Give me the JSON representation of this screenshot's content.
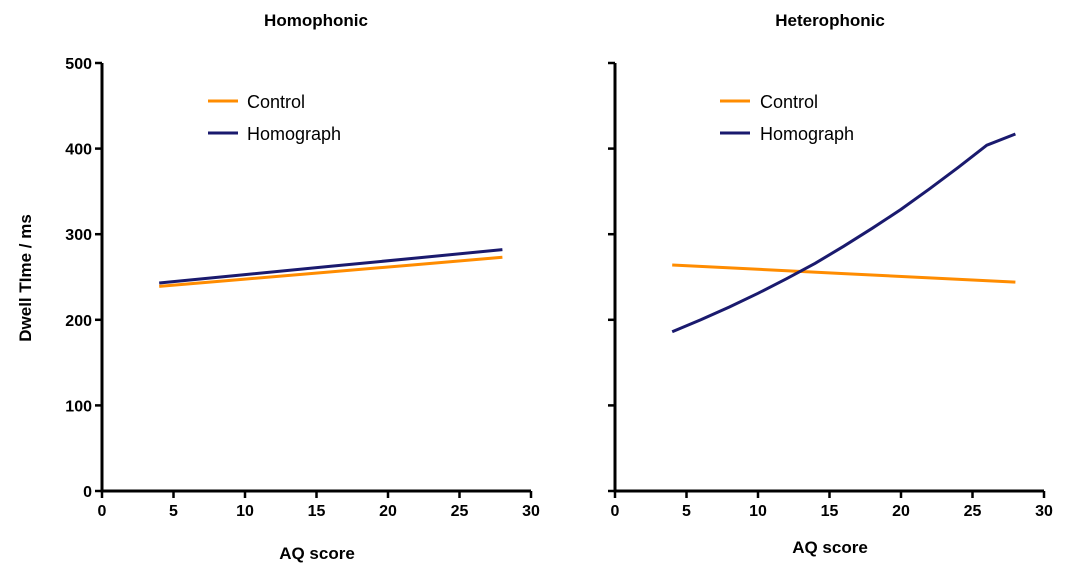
{
  "colors": {
    "control": "#FF8C00",
    "homograph": "#1A1A6E"
  },
  "chart_data": [
    {
      "type": "line",
      "title": "Homophonic",
      "xlabel": "AQ score",
      "ylabel": "Dwell TIme / ms",
      "xlim": [
        0,
        30
      ],
      "ylim": [
        0,
        500
      ],
      "xticks": [
        "0",
        "5",
        "10",
        "15",
        "20",
        "25",
        "30"
      ],
      "yticks": [
        "0",
        "100",
        "200",
        "300",
        "400",
        "500"
      ],
      "show_ytick_labels": true,
      "legend_position": "top-left",
      "series": [
        {
          "name": "Control",
          "color_key": "control",
          "x": [
            4,
            10,
            16,
            22,
            28
          ],
          "y": [
            239,
            247.5,
            256,
            264.5,
            273
          ]
        },
        {
          "name": "Homograph",
          "color_key": "homograph",
          "x": [
            4,
            10,
            16,
            22,
            28
          ],
          "y": [
            243,
            252.75,
            262.5,
            272.25,
            282
          ]
        }
      ]
    },
    {
      "type": "line",
      "title": "Heterophonic",
      "xlabel": "AQ score",
      "ylabel": "",
      "xlim": [
        0,
        30
      ],
      "ylim": [
        0,
        500
      ],
      "xticks": [
        "0",
        "5",
        "10",
        "15",
        "20",
        "25",
        "30"
      ],
      "yticks": [
        "",
        "",
        "",
        "",
        "",
        ""
      ],
      "show_ytick_labels": false,
      "legend_position": "top-left",
      "series": [
        {
          "name": "Control",
          "color_key": "control",
          "x": [
            4,
            10,
            16,
            22,
            28
          ],
          "y": [
            264,
            259,
            254,
            249,
            244
          ]
        },
        {
          "name": "Homograph",
          "color_key": "homograph",
          "x": [
            4,
            6,
            8,
            10,
            12,
            14,
            16,
            18,
            20,
            22,
            24,
            26,
            28
          ],
          "y": [
            186,
            200,
            215,
            231,
            248,
            266,
            286,
            307,
            329,
            353,
            378,
            404,
            417
          ]
        }
      ]
    }
  ]
}
